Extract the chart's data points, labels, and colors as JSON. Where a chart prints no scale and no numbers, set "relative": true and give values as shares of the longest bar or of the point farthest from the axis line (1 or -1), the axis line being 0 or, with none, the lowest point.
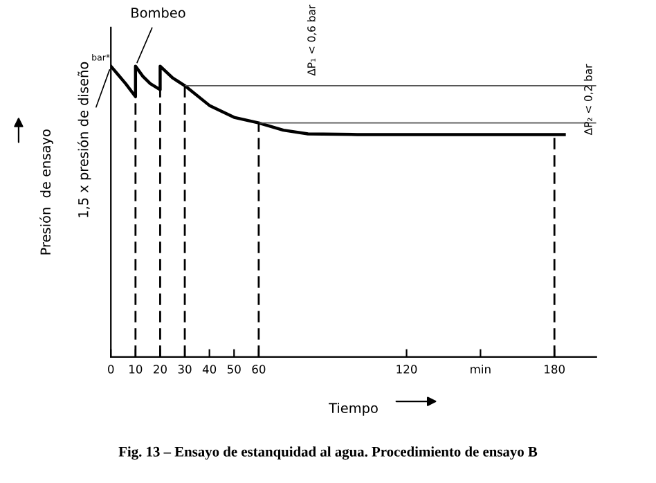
{
  "chart_data": {
    "type": "line",
    "relative": true,
    "xlabel": "Tiempo",
    "ylabel": "Presión  de ensayo",
    "xlim": [
      0,
      197
    ],
    "xticks": [
      0,
      10,
      20,
      30,
      40,
      50,
      60,
      120,
      {
        "value": 150,
        "label": "min"
      },
      180
    ],
    "series": [
      {
        "color": "#000000",
        "x": [
          0,
          3,
          6,
          10,
          10,
          13,
          16,
          20,
          20,
          25,
          30,
          40,
          50,
          60,
          70,
          80,
          100,
          140,
          184
        ],
        "values": [
          1,
          0.97,
          0.94,
          0.895,
          1,
          0.965,
          0.94,
          0.919,
          1,
          0.96,
          0.933,
          0.865,
          0.824,
          0.805,
          0.78,
          0.767,
          0.765,
          0.765,
          0.765
        ]
      }
    ],
    "ref_lines": [
      {
        "axis": "y",
        "value": 0.933,
        "color": "#555555"
      },
      {
        "axis": "y",
        "value": 0.805,
        "color": "#555555"
      },
      {
        "axis": "x",
        "value": 10,
        "color": "#000000",
        "line_style": "dashed"
      },
      {
        "axis": "x",
        "value": 20,
        "color": "#000000",
        "line_style": "dashed"
      },
      {
        "axis": "x",
        "value": 30,
        "color": "#000000",
        "line_style": "dashed"
      },
      {
        "axis": "x",
        "value": 60,
        "color": "#000000",
        "line_style": "dashed"
      },
      {
        "axis": "x",
        "value": 180,
        "color": "#000000",
        "line_style": "dashed"
      }
    ],
    "annotations": [
      {
        "text": "Bombeo",
        "x": 10,
        "y": 1
      },
      {
        "text": "1,5 x presión de diseño",
        "x": 0,
        "y": 1
      },
      "bar*",
      "ΔP₁ < 0,6 bar",
      "ΔP₂ < 0,2 bar",
      "Fig. 13 – Ensayo de estanquidad al agua. Procedimiento de ensayo B"
    ]
  }
}
